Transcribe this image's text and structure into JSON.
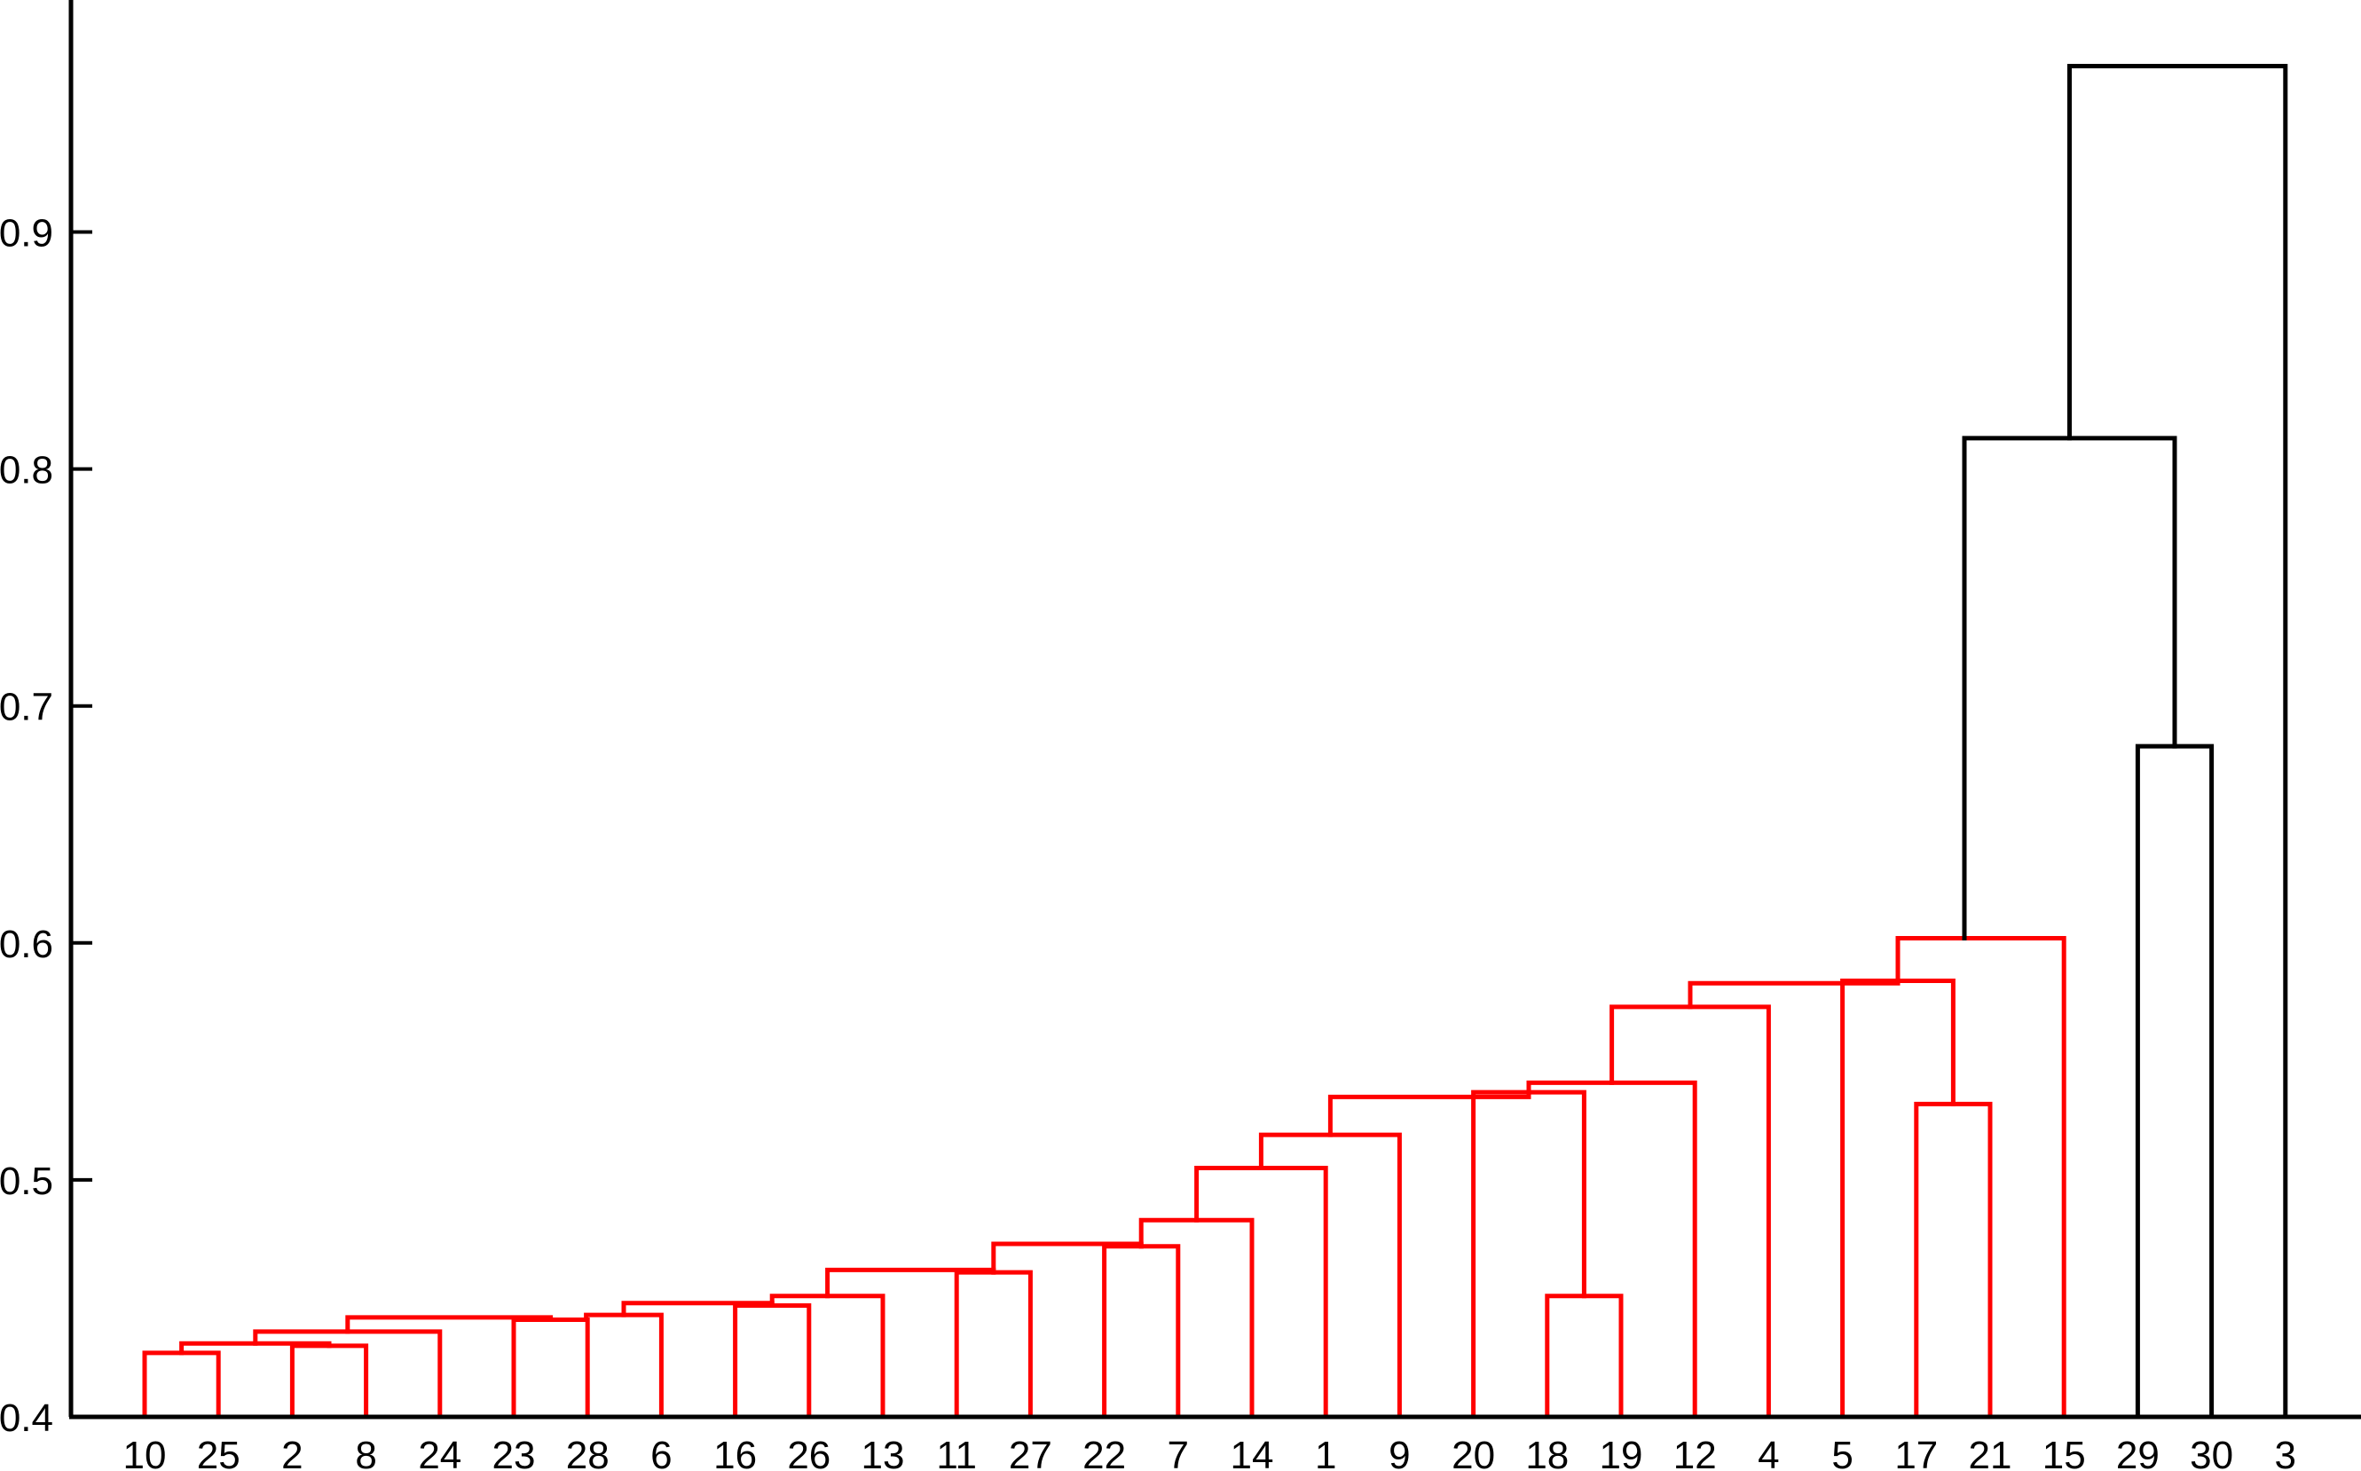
{
  "chart_data": {
    "type": "dendrogram",
    "title": "",
    "xlabel": "",
    "ylabel": "",
    "ylim": [
      0.4,
      1.0
    ],
    "y_ticks": [
      "0.4",
      "0.5",
      "0.6",
      "0.7",
      "0.8",
      "0.9"
    ],
    "grid": false,
    "leaf_order": [
      10,
      25,
      2,
      8,
      24,
      23,
      28,
      6,
      16,
      26,
      13,
      11,
      27,
      22,
      7,
      14,
      1,
      9,
      20,
      18,
      19,
      12,
      4,
      5,
      17,
      21,
      15,
      29,
      30,
      3
    ],
    "colors": {
      "cluster": "#ff0000",
      "above_threshold": "#000000",
      "axis": "#000000"
    },
    "merges": [
      {
        "left": 10,
        "right": 25,
        "height": 0.427,
        "color": "cluster"
      },
      {
        "left": 2,
        "right": 8,
        "height": 0.43,
        "color": "cluster"
      },
      {
        "left": "10,25",
        "right": "2,8",
        "height": 0.431,
        "color": "cluster"
      },
      {
        "left": "10,25,2,8",
        "right": 24,
        "height": 0.436,
        "color": "cluster"
      },
      {
        "left": 23,
        "right": 28,
        "height": 0.441,
        "color": "cluster"
      },
      {
        "left": "10,25,2,8,24",
        "right": "23,28",
        "height": 0.442,
        "color": "cluster"
      },
      {
        "left": "23,28",
        "right": 6,
        "height": 0.443,
        "color": "cluster"
      },
      {
        "left": 16,
        "right": 26,
        "height": 0.447,
        "color": "cluster"
      },
      {
        "left": "10,...,6",
        "right": "16,26",
        "height": 0.448,
        "color": "cluster"
      },
      {
        "left": "10,...,26",
        "right": 13,
        "height": 0.451,
        "color": "cluster"
      },
      {
        "left": 11,
        "right": 27,
        "height": 0.461,
        "color": "cluster"
      },
      {
        "left": "10,...,13",
        "right": "11,27",
        "height": 0.462,
        "color": "cluster"
      },
      {
        "left": 22,
        "right": 7,
        "height": 0.472,
        "color": "cluster"
      },
      {
        "left": "10,...,27",
        "right": "22,7",
        "height": 0.473,
        "color": "cluster"
      },
      {
        "left": "10,...,7",
        "right": 14,
        "height": 0.483,
        "color": "cluster"
      },
      {
        "left": "10,...,14",
        "right": 1,
        "height": 0.505,
        "color": "cluster"
      },
      {
        "left": "10,...,1",
        "right": 9,
        "height": 0.519,
        "color": "cluster"
      },
      {
        "left": "10,...,9",
        "right": "20,18,19,12,4,5,17,21,15",
        "height": 0.535,
        "color": "cluster"
      },
      {
        "left": 18,
        "right": 19,
        "height": 0.451,
        "color": "cluster"
      },
      {
        "left": 20,
        "right": "18,19",
        "height": 0.537,
        "color": "cluster"
      },
      {
        "left": "20,18,19",
        "right": 12,
        "height": 0.541,
        "color": "cluster"
      },
      {
        "left": "20,18,19,12",
        "right": 4,
        "height": 0.573,
        "color": "cluster"
      },
      {
        "left": 17,
        "right": 21,
        "height": 0.532,
        "color": "cluster"
      },
      {
        "left": 5,
        "right": "17,21",
        "height": 0.584,
        "color": "cluster"
      },
      {
        "left": "20,...,4",
        "right": "5,17,21",
        "height": 0.583,
        "color": "cluster"
      },
      {
        "left": "20,...,21",
        "right": 15,
        "height": 0.602,
        "color": "cluster"
      },
      {
        "left": 29,
        "right": 30,
        "height": 0.683,
        "color": "above_threshold"
      },
      {
        "left": "1-28 cluster",
        "right": "29,30",
        "height": 0.813,
        "color": "above_threshold"
      },
      {
        "left": "1-30",
        "right": 3,
        "height": 0.97,
        "color": "above_threshold"
      }
    ]
  }
}
